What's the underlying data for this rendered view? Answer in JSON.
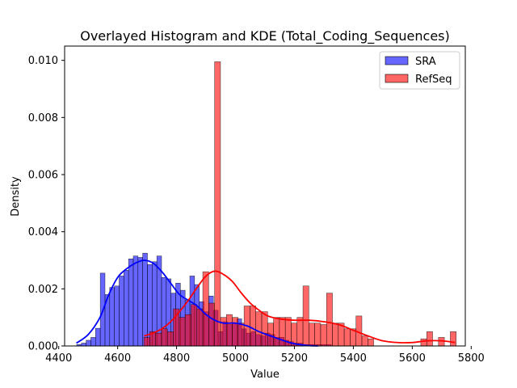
{
  "chart_data": {
    "type": "bar",
    "title": "Overlayed Histogram and KDE (Total_Coding_Sequences)",
    "xlabel": "Value",
    "ylabel": "Density",
    "xlim": [
      4420,
      5780
    ],
    "ylim": [
      0,
      0.0105
    ],
    "xticks": [
      4400,
      4600,
      4800,
      5000,
      5200,
      5400,
      5600,
      5800
    ],
    "yticks": [
      0,
      0.002,
      0.004,
      0.006,
      0.008,
      0.01
    ],
    "xtick_labels": [
      "4400",
      "4600",
      "4800",
      "5000",
      "5200",
      "5400",
      "5600",
      "5800"
    ],
    "ytick_labels": [
      "0.000",
      "0.002",
      "0.004",
      "0.006",
      "0.008",
      "0.010"
    ],
    "grid": false,
    "legend_position": "top-right",
    "series": [
      {
        "name": "SRA",
        "kind": "histogram",
        "color": "#0000ff",
        "kde_color": "#0000ff",
        "bins": [
          [
            4461,
            4477,
            5e-05
          ],
          [
            4477,
            4493,
            0.0001
          ],
          [
            4493,
            4509,
            0.0002
          ],
          [
            4509,
            4525,
            0.0003
          ],
          [
            4525,
            4541,
            0.00062
          ],
          [
            4541,
            4557,
            0.00255
          ],
          [
            4557,
            4573,
            0.0018
          ],
          [
            4573,
            4589,
            0.00205
          ],
          [
            4589,
            4605,
            0.0021
          ],
          [
            4605,
            4621,
            0.00245
          ],
          [
            4621,
            4637,
            0.00265
          ],
          [
            4637,
            4653,
            0.00305
          ],
          [
            4653,
            4669,
            0.00315
          ],
          [
            4669,
            4685,
            0.0031
          ],
          [
            4685,
            4701,
            0.00325
          ],
          [
            4701,
            4717,
            0.00285
          ],
          [
            4717,
            4733,
            0.00295
          ],
          [
            4733,
            4749,
            0.00315
          ],
          [
            4749,
            4765,
            0.0024
          ],
          [
            4765,
            4781,
            0.00235
          ],
          [
            4781,
            4797,
            0.00185
          ],
          [
            4797,
            4813,
            0.0022
          ],
          [
            4813,
            4829,
            0.00195
          ],
          [
            4829,
            4845,
            0.0016
          ],
          [
            4845,
            4861,
            0.00245
          ],
          [
            4861,
            4877,
            0.00215
          ],
          [
            4877,
            4893,
            0.00155
          ],
          [
            4893,
            4909,
            0.0012
          ],
          [
            4909,
            4925,
            0.00175
          ],
          [
            4925,
            4941,
            0.00125
          ],
          [
            4941,
            4957,
            0.0005
          ],
          [
            4957,
            4973,
            0.00085
          ],
          [
            4973,
            4989,
            0.00075
          ],
          [
            4989,
            5005,
            0.0008
          ],
          [
            5005,
            5021,
            0.00095
          ],
          [
            5021,
            5037,
            0.0006
          ],
          [
            5037,
            5053,
            0.00045
          ],
          [
            5053,
            5069,
            0.0005
          ],
          [
            5069,
            5085,
            0.0004
          ],
          [
            5085,
            5101,
            0.00035
          ],
          [
            5101,
            5117,
            0.00045
          ],
          [
            5117,
            5133,
            0.0004
          ],
          [
            5133,
            5149,
            0.0003
          ],
          [
            5149,
            5165,
            0.0003
          ],
          [
            5165,
            5181,
            0.0002
          ],
          [
            5181,
            5197,
            0.00015
          ],
          [
            5197,
            5213,
            0.0001
          ],
          [
            5213,
            5229,
            0.0001
          ],
          [
            5229,
            5245,
            5e-05
          ],
          [
            5245,
            5261,
            5e-05
          ],
          [
            5261,
            5277,
            5e-05
          ],
          [
            5277,
            5293,
            5e-05
          ],
          [
            5293,
            5309,
            5e-05
          ],
          [
            5309,
            5325,
            5e-05
          ]
        ],
        "kde": [
          [
            4460,
            0.0001
          ],
          [
            4500,
            0.0004
          ],
          [
            4540,
            0.001
          ],
          [
            4570,
            0.0018
          ],
          [
            4600,
            0.0024
          ],
          [
            4630,
            0.0027
          ],
          [
            4660,
            0.0029
          ],
          [
            4690,
            0.003
          ],
          [
            4720,
            0.0029
          ],
          [
            4750,
            0.0026
          ],
          [
            4780,
            0.0022
          ],
          [
            4810,
            0.0018
          ],
          [
            4840,
            0.0016
          ],
          [
            4870,
            0.0014
          ],
          [
            4900,
            0.0011
          ],
          [
            4930,
            0.0009
          ],
          [
            4960,
            0.0008
          ],
          [
            5000,
            0.0008
          ],
          [
            5040,
            0.0007
          ],
          [
            5080,
            0.0005
          ],
          [
            5120,
            0.00035
          ],
          [
            5160,
            0.0002
          ],
          [
            5200,
            8e-05
          ],
          [
            5240,
            2e-05
          ],
          [
            5280,
            0.0
          ]
        ]
      },
      {
        "name": "RefSeq",
        "kind": "histogram",
        "color": "#ff0000",
        "kde_color": "#ff0000",
        "bins": [
          [
            4689,
            4709,
            0.0003
          ],
          [
            4709,
            4729,
            0.0005
          ],
          [
            4729,
            4749,
            0.00045
          ],
          [
            4749,
            4769,
            0.0006
          ],
          [
            4769,
            4789,
            0.0005
          ],
          [
            4789,
            4809,
            0.0013
          ],
          [
            4809,
            4829,
            0.001
          ],
          [
            4829,
            4849,
            0.0011
          ],
          [
            4849,
            4869,
            0.00145
          ],
          [
            4869,
            4889,
            0.0013
          ],
          [
            4889,
            4909,
            0.0026
          ],
          [
            4909,
            4929,
            0.0015
          ],
          [
            4929,
            4949,
            0.00995
          ],
          [
            4949,
            4969,
            0.001
          ],
          [
            4969,
            4989,
            0.0011
          ],
          [
            4989,
            5009,
            0.001
          ],
          [
            5009,
            5029,
            0.0008
          ],
          [
            5029,
            5049,
            0.0014
          ],
          [
            5049,
            5069,
            0.0014
          ],
          [
            5069,
            5089,
            0.0012
          ],
          [
            5089,
            5109,
            0.0012
          ],
          [
            5109,
            5129,
            0.0008
          ],
          [
            5129,
            5149,
            0.001
          ],
          [
            5149,
            5169,
            0.001
          ],
          [
            5169,
            5189,
            0.001
          ],
          [
            5189,
            5209,
            0.0008
          ],
          [
            5209,
            5229,
            0.001
          ],
          [
            5229,
            5249,
            0.0021
          ],
          [
            5249,
            5269,
            0.0008
          ],
          [
            5269,
            5289,
            0.0008
          ],
          [
            5289,
            5309,
            0.00075
          ],
          [
            5309,
            5329,
            0.00185
          ],
          [
            5329,
            5349,
            0.0008
          ],
          [
            5349,
            5369,
            0.0008
          ],
          [
            5369,
            5389,
            0.0006
          ],
          [
            5389,
            5409,
            0.0006
          ],
          [
            5409,
            5429,
            0.00105
          ],
          [
            5429,
            5449,
            0.00035
          ],
          [
            5449,
            5469,
            0.00025
          ],
          [
            5629,
            5649,
            0.00025
          ],
          [
            5649,
            5669,
            0.0005
          ],
          [
            5689,
            5709,
            0.0003
          ],
          [
            5729,
            5749,
            0.0005
          ]
        ],
        "kde": [
          [
            4690,
            0.00035
          ],
          [
            4720,
            0.00045
          ],
          [
            4750,
            0.0006
          ],
          [
            4780,
            0.00085
          ],
          [
            4810,
            0.0012
          ],
          [
            4840,
            0.0016
          ],
          [
            4870,
            0.00205
          ],
          [
            4900,
            0.00245
          ],
          [
            4930,
            0.00262
          ],
          [
            4960,
            0.0025
          ],
          [
            4990,
            0.00225
          ],
          [
            5020,
            0.00185
          ],
          [
            5050,
            0.0015
          ],
          [
            5080,
            0.00125
          ],
          [
            5110,
            0.00105
          ],
          [
            5150,
            0.00095
          ],
          [
            5200,
            0.0009
          ],
          [
            5250,
            0.0009
          ],
          [
            5300,
            0.00085
          ],
          [
            5350,
            0.00075
          ],
          [
            5400,
            0.00055
          ],
          [
            5450,
            0.00035
          ],
          [
            5500,
            0.00018
          ],
          [
            5550,
            0.00012
          ],
          [
            5600,
            0.00012
          ],
          [
            5650,
            0.00018
          ],
          [
            5700,
            0.00018
          ],
          [
            5745,
            0.00012
          ]
        ]
      }
    ]
  }
}
